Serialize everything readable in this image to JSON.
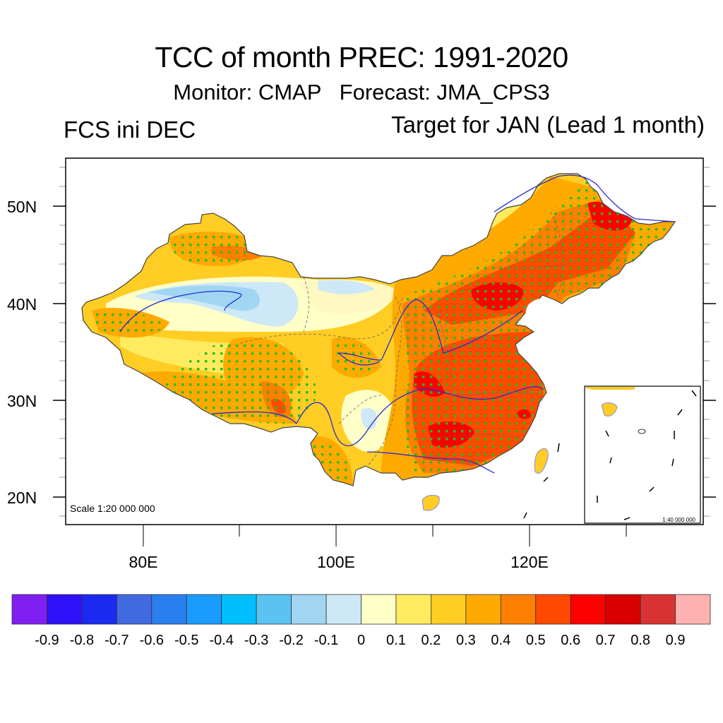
{
  "header": {
    "title": "TCC of month PREC: 1991-2020",
    "subtitle": "Monitor: CMAP   Forecast: JMA_CPS3",
    "left_label": "FCS ini DEC",
    "right_label": "Target for JAN (Lead 1 month)"
  },
  "map": {
    "region": "China",
    "variable": "TCC (temporal correlation coefficient) of monthly precipitation",
    "lat_ticks": [
      "50N",
      "40N",
      "30N",
      "20N"
    ],
    "lon_ticks": [
      "80E",
      "100E",
      "120E"
    ],
    "scale_label": "Scale 1:20 000 000",
    "inset_scale_label": "1:40 000 000",
    "stipple_color": "#1fbf1f",
    "river_color": "#3333cc",
    "border_color": "#555555",
    "regions": [
      {
        "name": "northern-xinjiang-dzungaria",
        "tcc": 0.4,
        "significant": true
      },
      {
        "name": "tarim-basin",
        "tcc": -0.2,
        "significant": false
      },
      {
        "name": "western-kunlun",
        "tcc": 0.4,
        "significant": true
      },
      {
        "name": "qinghai-tibet-plateau",
        "tcc": 0.3,
        "significant": false
      },
      {
        "name": "southern-tibet",
        "tcc": 0.4,
        "significant": true
      },
      {
        "name": "eastern-tibet",
        "tcc": 0.5,
        "significant": true
      },
      {
        "name": "inner-mongolia-west",
        "tcc": -0.1,
        "significant": false
      },
      {
        "name": "sichuan-basin",
        "tcc": -0.1,
        "significant": false
      },
      {
        "name": "yunnan",
        "tcc": 0.3,
        "significant": false
      },
      {
        "name": "north-china",
        "tcc": 0.6,
        "significant": true
      },
      {
        "name": "northeast-china",
        "tcc": 0.6,
        "significant": true
      },
      {
        "name": "inner-mongolia-east",
        "tcc": 0.1,
        "significant": false
      },
      {
        "name": "yangtze-middle",
        "tcc": 0.6,
        "significant": true
      },
      {
        "name": "south-china",
        "tcc": 0.5,
        "significant": true
      },
      {
        "name": "hunan-jiangxi-core",
        "tcc": 0.7,
        "significant": true
      },
      {
        "name": "hubei-core",
        "tcc": 0.7,
        "significant": true
      },
      {
        "name": "hainan",
        "tcc": 0.1,
        "significant": false
      },
      {
        "name": "taiwan",
        "tcc": 0.3,
        "significant": false
      }
    ]
  },
  "colorbar": {
    "colors": [
      "#8020f0",
      "#3010f8",
      "#1a2af0",
      "#4169e0",
      "#2a7ff0",
      "#1a9cff",
      "#00bfff",
      "#5bc3f2",
      "#a0d6f2",
      "#cde8f6",
      "#ffffc8",
      "#ffeb5f",
      "#ffcd23",
      "#ffaa00",
      "#ff7f00",
      "#ff4a00",
      "#ff0000",
      "#d80000",
      "#d93232",
      "#ffb0b0"
    ],
    "labels": [
      "-0.9",
      "-0.8",
      "-0.7",
      "-0.6",
      "-0.5",
      "-0.4",
      "-0.3",
      "-0.2",
      "-0.1",
      "0",
      "0.1",
      "0.2",
      "0.3",
      "0.4",
      "0.5",
      "0.6",
      "0.7",
      "0.8",
      "0.9"
    ]
  }
}
